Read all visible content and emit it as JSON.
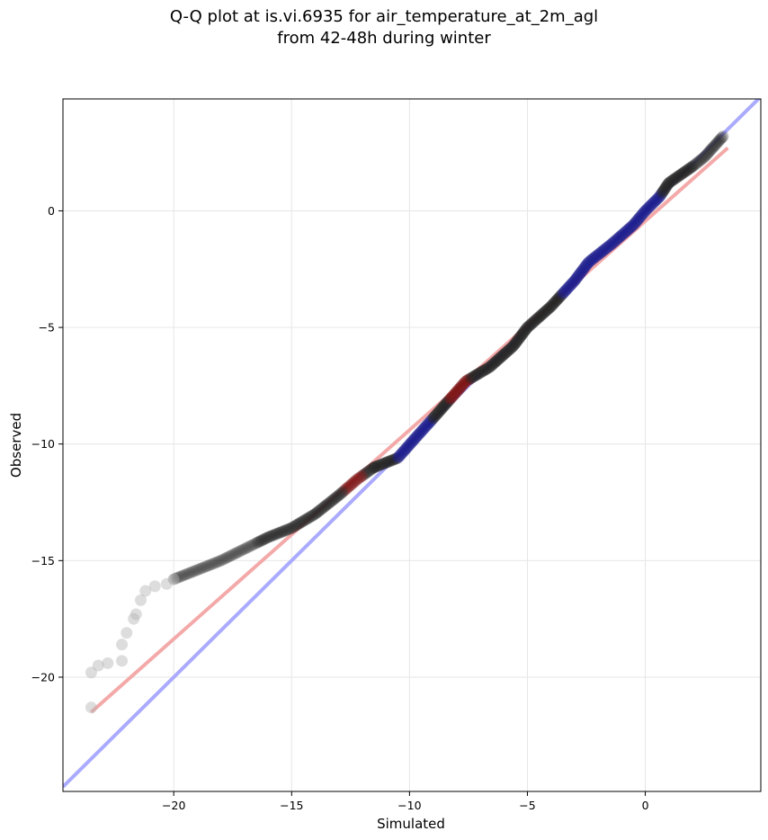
{
  "chart_data": {
    "type": "scatter",
    "title_lines": [
      "Q-Q plot at is.vi.6935 for air_temperature_at_2m_agl",
      "from 42-48h during winter"
    ],
    "xlabel": "Simulated",
    "ylabel": "Observed",
    "xlim": [
      -24.7,
      4.9
    ],
    "ylim": [
      -24.9,
      4.8
    ],
    "xticks": [
      -20,
      -15,
      -10,
      -5,
      0
    ],
    "yticks": [
      0,
      -5,
      -10,
      -15,
      -20
    ],
    "grid": true,
    "reference_lines": [
      {
        "kind": "identity",
        "color": "#aaaaff",
        "x": [
          -24.7,
          4.9
        ],
        "y": [
          -24.7,
          4.9
        ]
      },
      {
        "kind": "fit",
        "color": "#f4a9a9",
        "x": [
          -23.5,
          3.5
        ],
        "y": [
          -21.5,
          2.7
        ]
      }
    ],
    "point_colors": {
      "low": "#b4b4b4",
      "mid": "#222222",
      "blue": "#1a1a8c",
      "red": "#7a1010"
    },
    "upper_segment": [
      [
        -11.5,
        -11.0
      ],
      [
        -10.5,
        -10.6
      ],
      [
        -9.8,
        -9.8
      ],
      [
        -9.0,
        -8.9
      ],
      [
        -8.3,
        -8.1
      ],
      [
        -7.6,
        -7.3
      ],
      [
        -6.6,
        -6.7
      ],
      [
        -5.6,
        -5.8
      ],
      [
        -5.0,
        -5.0
      ],
      [
        -4.0,
        -4.1
      ],
      [
        -3.0,
        -3.0
      ],
      [
        -2.4,
        -2.2
      ],
      [
        -1.4,
        -1.4
      ],
      [
        -0.5,
        -0.6
      ],
      [
        0.0,
        0.0
      ],
      [
        0.6,
        0.6
      ],
      [
        1.0,
        1.2
      ],
      [
        2.0,
        1.9
      ],
      [
        2.5,
        2.3
      ],
      [
        3.3,
        3.2
      ]
    ],
    "lower_segment": [
      [
        -11.5,
        -11.0
      ],
      [
        -12.2,
        -11.5
      ],
      [
        -13.0,
        -12.2
      ],
      [
        -14.0,
        -13.0
      ],
      [
        -15.0,
        -13.6
      ],
      [
        -16.0,
        -14.0
      ],
      [
        -17.0,
        -14.5
      ],
      [
        -18.0,
        -15.0
      ],
      [
        -19.0,
        -15.4
      ],
      [
        -20.0,
        -15.8
      ],
      [
        -20.5,
        -16.0
      ],
      [
        -21.0,
        -16.2
      ],
      [
        -21.3,
        -16.5
      ],
      [
        -21.5,
        -17.0
      ],
      [
        -21.7,
        -17.5
      ],
      [
        -22.0,
        -18.1
      ],
      [
        -22.2,
        -18.6
      ],
      [
        -22.2,
        -19.3
      ],
      [
        -23.0,
        -19.4
      ],
      [
        -23.3,
        -19.5
      ],
      [
        -23.5,
        -19.8
      ],
      [
        -23.5,
        -21.3
      ]
    ],
    "sparse_lower_points": [
      [
        -20.0,
        -15.8
      ],
      [
        -20.3,
        -16.0
      ],
      [
        -20.8,
        -16.1
      ],
      [
        -21.2,
        -16.3
      ],
      [
        -21.4,
        -16.7
      ],
      [
        -21.6,
        -17.3
      ],
      [
        -21.7,
        -17.5
      ],
      [
        -22.0,
        -18.1
      ],
      [
        -22.2,
        -18.6
      ],
      [
        -22.2,
        -19.3
      ],
      [
        -22.8,
        -19.4
      ],
      [
        -23.2,
        -19.5
      ],
      [
        -23.5,
        -19.8
      ],
      [
        -23.5,
        -21.3
      ]
    ]
  }
}
